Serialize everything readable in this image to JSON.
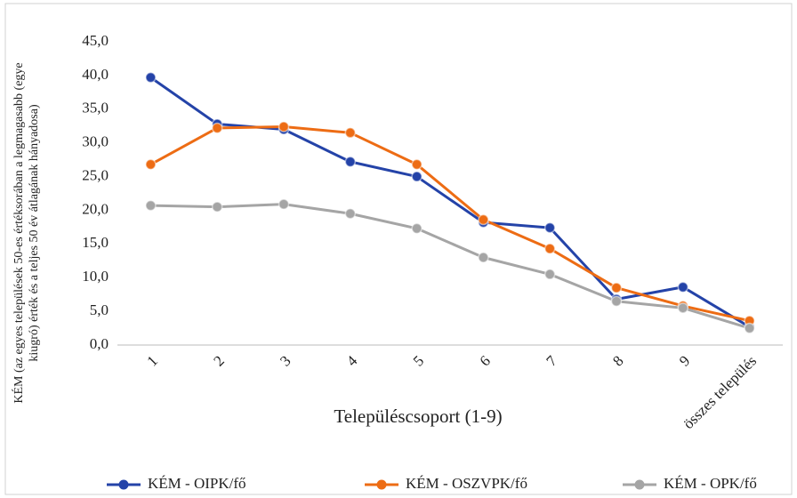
{
  "chart_data": {
    "type": "line",
    "ylabel": [
      "KÉM (az egyes települések 50-es értéksorában a legmagasabb (egye",
      "kiugró) érték és a teljes 50 év átlagának hányadosa)"
    ],
    "xlabel": "Településcsoport (1-9)",
    "categories": [
      "1",
      "2",
      "3",
      "4",
      "5",
      "6",
      "7",
      "8",
      "9",
      "összes település"
    ],
    "series": [
      {
        "name": "KÉM - OIPK/fő",
        "color": "#2443a8",
        "values": [
          39.7,
          32.8,
          32.0,
          27.2,
          25.0,
          18.2,
          17.4,
          6.8,
          8.6,
          2.7
        ]
      },
      {
        "name": "KÉM - OSZVPK/fő",
        "color": "#ed6c14",
        "values": [
          26.8,
          32.2,
          32.4,
          31.5,
          26.8,
          18.6,
          14.3,
          8.5,
          5.8,
          3.6
        ]
      },
      {
        "name": "KÉM - OPK/fő",
        "color": "#a5a5a5",
        "values": [
          20.7,
          20.5,
          20.9,
          19.5,
          17.3,
          13.0,
          10.5,
          6.5,
          5.5,
          2.5
        ]
      }
    ],
    "ylim": [
      0,
      45
    ],
    "yticks": [
      {
        "value": 0,
        "label": "0,0"
      },
      {
        "value": 5,
        "label": "5,0"
      },
      {
        "value": 10,
        "label": "10,0"
      },
      {
        "value": 15,
        "label": "15,0"
      },
      {
        "value": 20,
        "label": "20,0"
      },
      {
        "value": 25,
        "label": "25,0"
      },
      {
        "value": 30,
        "label": "30,0"
      },
      {
        "value": 35,
        "label": "35,0"
      },
      {
        "value": 40,
        "label": "40,0"
      },
      {
        "value": 45,
        "label": "45,0"
      }
    ],
    "grid": false,
    "legend": "bottom"
  }
}
